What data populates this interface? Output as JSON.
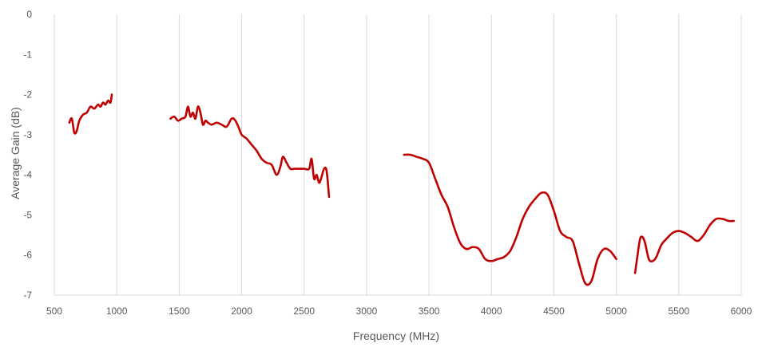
{
  "chart_data": {
    "type": "line",
    "title": "",
    "xlabel": "Frequency (MHz)",
    "ylabel": "Average Gain (dB)",
    "xlim": [
      500,
      6000
    ],
    "ylim": [
      -7,
      0
    ],
    "xticks": [
      500,
      1000,
      1500,
      2000,
      2500,
      3000,
      3500,
      4000,
      4500,
      5000,
      5500,
      6000
    ],
    "yticks": [
      0,
      -1,
      -2,
      -3,
      -4,
      -5,
      -6,
      -7
    ],
    "grid": "vertical",
    "legend": "none",
    "line_color": "#c00000",
    "series": [
      {
        "x": [
          620,
          640,
          660,
          680,
          700,
          730,
          760,
          790,
          820,
          850,
          870,
          890,
          910,
          930,
          950,
          960
        ],
        "y": [
          -2.7,
          -2.6,
          -2.95,
          -2.9,
          -2.65,
          -2.5,
          -2.45,
          -2.3,
          -2.35,
          -2.25,
          -2.3,
          -2.2,
          -2.25,
          -2.15,
          -2.2,
          -2.0
        ]
      },
      {
        "x": [
          1430,
          1460,
          1490,
          1520,
          1550,
          1570,
          1590,
          1610,
          1630,
          1650,
          1670,
          1690,
          1710,
          1730,
          1760,
          1800,
          1840,
          1880,
          1920,
          1950,
          1980,
          2000,
          2040,
          2080,
          2120,
          2160,
          2200,
          2240,
          2280,
          2310,
          2330,
          2360,
          2390,
          2420,
          2460,
          2500,
          2540,
          2560,
          2580,
          2600,
          2620,
          2640,
          2660,
          2680,
          2700
        ],
        "y": [
          -2.6,
          -2.55,
          -2.65,
          -2.6,
          -2.55,
          -2.3,
          -2.55,
          -2.45,
          -2.6,
          -2.3,
          -2.45,
          -2.75,
          -2.65,
          -2.7,
          -2.75,
          -2.7,
          -2.75,
          -2.8,
          -2.6,
          -2.65,
          -2.85,
          -3.0,
          -3.1,
          -3.25,
          -3.4,
          -3.6,
          -3.7,
          -3.75,
          -4.0,
          -3.8,
          -3.55,
          -3.7,
          -3.85,
          -3.85,
          -3.85,
          -3.85,
          -3.85,
          -3.6,
          -4.1,
          -4.0,
          -4.2,
          -4.05,
          -3.85,
          -3.9,
          -4.55
        ]
      },
      {
        "x": [
          3300,
          3350,
          3400,
          3450,
          3500,
          3550,
          3600,
          3650,
          3700,
          3750,
          3800,
          3850,
          3900,
          3950,
          4000,
          4050,
          4100,
          4150,
          4200,
          4250,
          4300,
          4350,
          4400,
          4450,
          4500,
          4550,
          4600,
          4650,
          4700,
          4750,
          4800,
          4850,
          4900,
          4950,
          5000
        ],
        "y": [
          -3.5,
          -3.5,
          -3.55,
          -3.6,
          -3.7,
          -4.1,
          -4.5,
          -4.8,
          -5.3,
          -5.7,
          -5.85,
          -5.8,
          -5.85,
          -6.1,
          -6.15,
          -6.1,
          -6.05,
          -5.9,
          -5.55,
          -5.1,
          -4.8,
          -4.6,
          -4.45,
          -4.5,
          -4.9,
          -5.4,
          -5.55,
          -5.65,
          -6.2,
          -6.7,
          -6.65,
          -6.1,
          -5.85,
          -5.9,
          -6.1
        ]
      },
      {
        "x": [
          5150,
          5170,
          5190,
          5210,
          5230,
          5260,
          5290,
          5320,
          5360,
          5400,
          5450,
          5500,
          5550,
          5600,
          5650,
          5700,
          5750,
          5800,
          5850,
          5900,
          5940
        ],
        "y": [
          -6.45,
          -6.0,
          -5.6,
          -5.55,
          -5.7,
          -6.1,
          -6.15,
          -6.05,
          -5.75,
          -5.6,
          -5.45,
          -5.4,
          -5.45,
          -5.55,
          -5.65,
          -5.5,
          -5.25,
          -5.1,
          -5.1,
          -5.15,
          -5.15
        ]
      }
    ]
  }
}
